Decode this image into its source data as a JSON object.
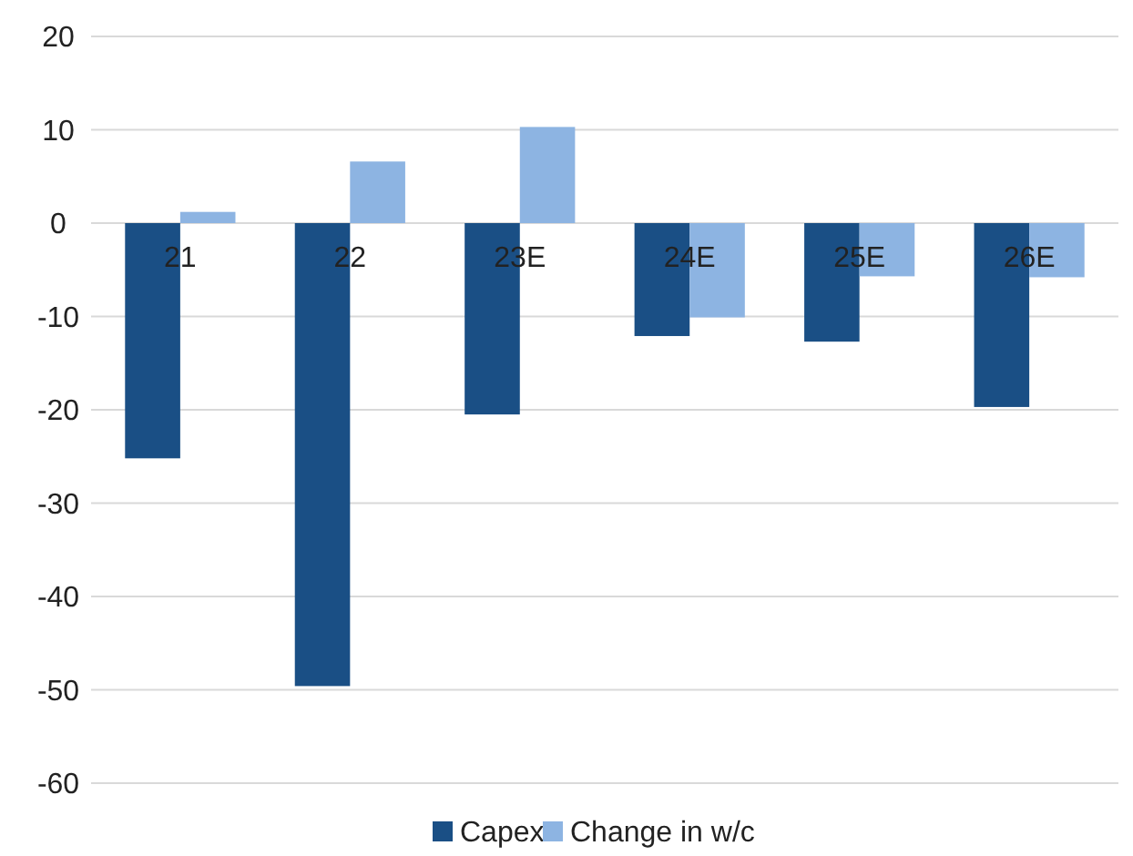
{
  "chart_data": {
    "type": "bar",
    "categories": [
      "21",
      "22",
      "23E",
      "24E",
      "25E",
      "26E"
    ],
    "series": [
      {
        "name": "Capex",
        "color": "#1a4f85",
        "values": [
          -25.2,
          -49.6,
          -20.5,
          -12.1,
          -12.7,
          -19.7
        ]
      },
      {
        "name": "Change in w/c",
        "color": "#8db4e2",
        "values": [
          1.2,
          6.6,
          10.3,
          -10.1,
          -5.7,
          -5.8
        ]
      }
    ],
    "ylim": [
      -60,
      20
    ],
    "yticks": [
      -60,
      -50,
      -40,
      -30,
      -20,
      -10,
      0,
      10,
      20
    ],
    "grid": "y",
    "legend": "bottom"
  }
}
